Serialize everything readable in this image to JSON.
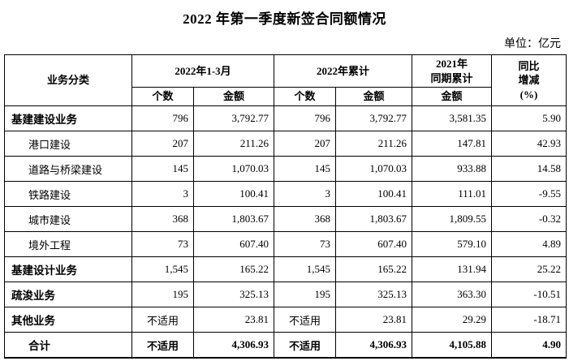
{
  "page": {
    "title": "2022 年第一季度新签合同额情况",
    "unit_label": "单位：亿元"
  },
  "table": {
    "na_text": "不适用",
    "header": {
      "col_business": "业务分类",
      "group_2022_q1": "2022年1-3月",
      "group_2022_cum": "2022年累计",
      "group_2021_line1": "2021年",
      "group_2021_line2": "同期累计",
      "yoy_line1": "同比",
      "yoy_line2": "增减",
      "yoy_line3": "(%)",
      "sub_count_q1": "个数",
      "sub_amount_q1": "金额",
      "sub_count_cum": "个数",
      "sub_amount_cum": "金额",
      "sub_amount_2021": "金额"
    },
    "columns_order": [
      "2022年1-3月 个数",
      "2022年1-3月 金额",
      "2022年累计 个数",
      "2022年累计 金额",
      "2021年同期累计 金额",
      "同比增减(%)"
    ],
    "rows": [
      {
        "label": "基建建设业务",
        "bold": true,
        "indent": false,
        "total": false,
        "cells": [
          "796",
          "3,792.77",
          "796",
          "3,792.77",
          "3,581.35",
          "5.90"
        ]
      },
      {
        "label": "港口建设",
        "bold": false,
        "indent": true,
        "total": false,
        "cells": [
          "207",
          "211.26",
          "207",
          "211.26",
          "147.81",
          "42.93"
        ]
      },
      {
        "label": "道路与桥梁建设",
        "bold": false,
        "indent": true,
        "total": false,
        "cells": [
          "145",
          "1,070.03",
          "145",
          "1,070.03",
          "933.88",
          "14.58"
        ]
      },
      {
        "label": "铁路建设",
        "bold": false,
        "indent": true,
        "total": false,
        "cells": [
          "3",
          "100.41",
          "3",
          "100.41",
          "111.01",
          "-9.55"
        ]
      },
      {
        "label": "城市建设",
        "bold": false,
        "indent": true,
        "total": false,
        "cells": [
          "368",
          "1,803.67",
          "368",
          "1,803.67",
          "1,809.55",
          "-0.32"
        ]
      },
      {
        "label": "境外工程",
        "bold": false,
        "indent": true,
        "total": false,
        "cells": [
          "73",
          "607.40",
          "73",
          "607.40",
          "579.10",
          "4.89"
        ]
      },
      {
        "label": "基建设计业务",
        "bold": true,
        "indent": false,
        "total": false,
        "cells": [
          "1,545",
          "165.22",
          "1,545",
          "165.22",
          "131.94",
          "25.22"
        ]
      },
      {
        "label": "疏浚业务",
        "bold": true,
        "indent": false,
        "total": false,
        "cells": [
          "195",
          "325.13",
          "195",
          "325.13",
          "363.30",
          "-10.51"
        ]
      },
      {
        "label": "其他业务",
        "bold": true,
        "indent": false,
        "total": false,
        "cells": [
          "不适用",
          "23.81",
          "不适用",
          "23.81",
          "29.29",
          "-18.71"
        ]
      },
      {
        "label": "合计",
        "bold": true,
        "indent": true,
        "total": true,
        "cells": [
          "不适用",
          "4,306.93",
          "不适用",
          "4,306.93",
          "4,105.88",
          "4.90"
        ]
      }
    ]
  }
}
